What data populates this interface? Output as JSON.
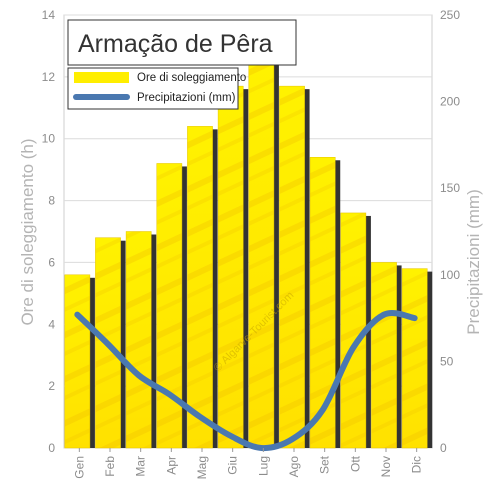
{
  "chart_data": {
    "type": "bar",
    "title": "Armação de Pêra",
    "categories": [
      "Gen",
      "Feb",
      "Mar",
      "Apr",
      "Mag",
      "Giu",
      "Lug",
      "Ago",
      "Set",
      "Ott",
      "Nov",
      "Dic"
    ],
    "series": [
      {
        "name": "Ore di soleggiamento",
        "type": "bar",
        "axis": "left",
        "values": [
          5.6,
          6.8,
          7.0,
          9.2,
          10.4,
          11.7,
          12.5,
          11.7,
          9.4,
          7.6,
          6.0,
          5.8
        ]
      },
      {
        "name": "Precipitazioni (mm)",
        "type": "line",
        "axis": "right",
        "values": [
          77,
          60,
          42,
          31,
          18,
          7,
          0,
          5,
          22,
          58,
          77,
          75
        ]
      }
    ],
    "ylabel": "Ore di soleggiamento (h)",
    "y2label": "Precipitazioni (mm)",
    "ylim": [
      0,
      14
    ],
    "y2lim": [
      0,
      250
    ],
    "yticks": [
      0,
      2,
      4,
      6,
      8,
      10,
      12,
      14
    ],
    "y2ticks": [
      0,
      50,
      100,
      150,
      200,
      250
    ],
    "grid": true,
    "legend": "top-left",
    "watermark": "© Algarve-Tourist.com",
    "colors": {
      "bar": "#ffee00",
      "bar_edge": "#e6c400",
      "bar_shadow": "#333333",
      "line": "#4a78b0",
      "grid": "#dcdcdc"
    }
  }
}
